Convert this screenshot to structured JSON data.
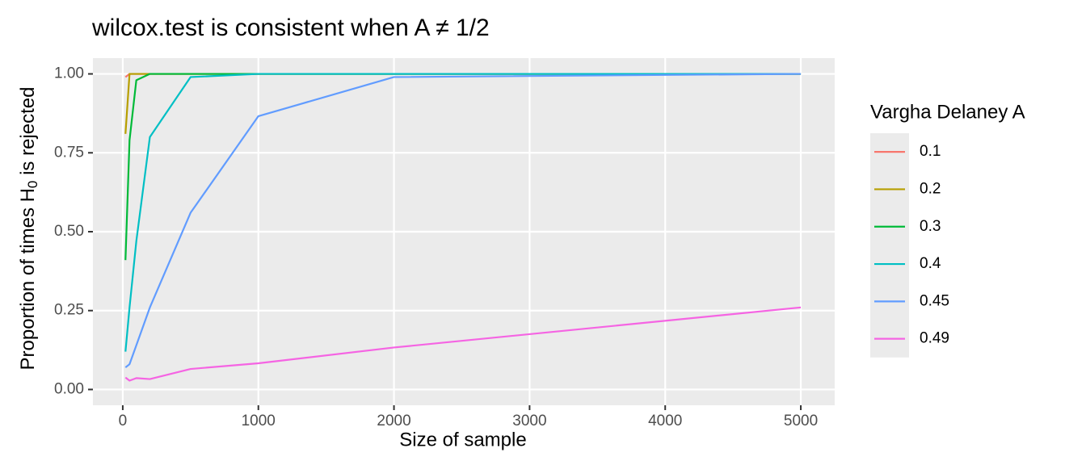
{
  "chart_data": {
    "type": "line",
    "title": "wilcox.test is consistent when A ≠ 1/2",
    "x_label": "Size of sample",
    "y_label": [
      "Proportion of times H",
      "0",
      " is rejected"
    ],
    "legend_title": "Vargha Delaney A",
    "legend_position": "right",
    "grid": true,
    "x": [
      20,
      50,
      100,
      200,
      500,
      1000,
      2000,
      5000
    ],
    "series": [
      {
        "name": "0.1",
        "color": "#F8766D",
        "values": [
          0.99,
          1.0,
          1.0,
          1.0,
          1.0,
          1.0,
          1.0,
          1.0
        ]
      },
      {
        "name": "0.2",
        "color": "#B79F00",
        "values": [
          0.81,
          1.0,
          1.0,
          1.0,
          1.0,
          1.0,
          1.0,
          1.0
        ]
      },
      {
        "name": "0.3",
        "color": "#00BA38",
        "values": [
          0.41,
          0.79,
          0.98,
          1.0,
          1.0,
          1.0,
          1.0,
          1.0
        ]
      },
      {
        "name": "0.4",
        "color": "#00BFC4",
        "values": [
          0.12,
          0.26,
          0.47,
          0.8,
          0.99,
          1.0,
          1.0,
          1.0
        ]
      },
      {
        "name": "0.45",
        "color": "#619CFF",
        "values": [
          0.07,
          0.08,
          0.14,
          0.26,
          0.56,
          0.866,
          0.99,
          1.0
        ]
      },
      {
        "name": "0.49",
        "color": "#F564E3",
        "values": [
          0.038,
          0.028,
          0.036,
          0.033,
          0.065,
          0.083,
          0.133,
          0.26
        ]
      }
    ],
    "xlim": [
      -220,
      5250
    ],
    "xticks": [
      0,
      1000,
      2000,
      3000,
      4000,
      5000
    ],
    "ylim": [
      -0.05,
      1.05
    ],
    "yticks": [
      {
        "value": 0,
        "label": "0.00"
      },
      {
        "value": 0.25,
        "label": "0.25"
      },
      {
        "value": 0.5,
        "label": "0.50"
      },
      {
        "value": 0.75,
        "label": "0.75"
      },
      {
        "value": 1,
        "label": "1.00"
      }
    ]
  }
}
